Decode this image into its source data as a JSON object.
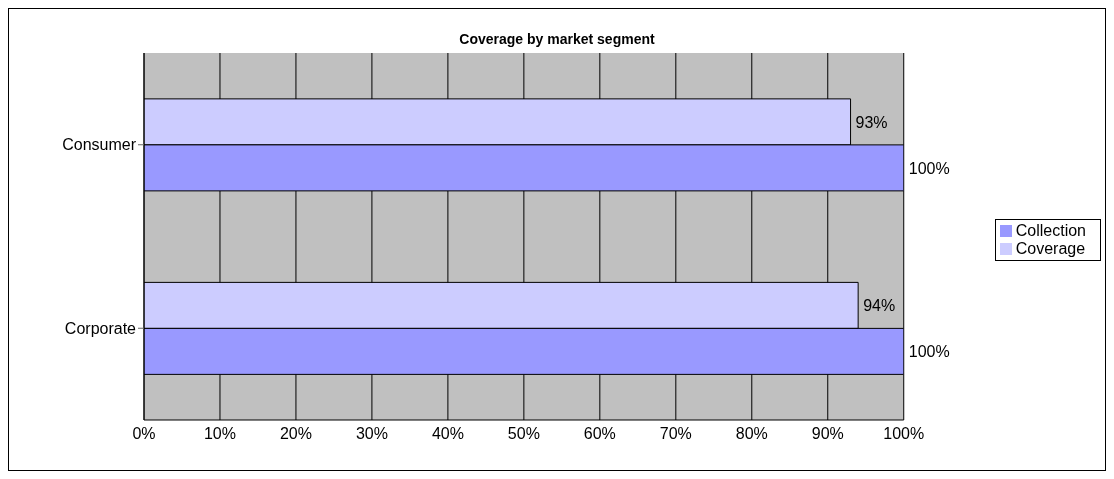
{
  "chart_data": {
    "type": "bar",
    "orientation": "horizontal",
    "title": "Coverage by market segment",
    "categories": [
      "Consumer",
      "Corporate"
    ],
    "series": [
      {
        "name": "Coverage",
        "color": "#ccccff",
        "values": [
          93,
          94
        ],
        "value_labels": [
          "93%",
          "94%"
        ]
      },
      {
        "name": "Collection",
        "color": "#9999ff",
        "values": [
          100,
          100
        ],
        "value_labels": [
          "100%",
          "100%"
        ]
      }
    ],
    "xlim": [
      0,
      100
    ],
    "xticks": [
      {
        "value": 0,
        "label": "0%"
      },
      {
        "value": 10,
        "label": "10%"
      },
      {
        "value": 20,
        "label": "20%"
      },
      {
        "value": 30,
        "label": "30%"
      },
      {
        "value": 40,
        "label": "40%"
      },
      {
        "value": 50,
        "label": "50%"
      },
      {
        "value": 60,
        "label": "60%"
      },
      {
        "value": 70,
        "label": "70%"
      },
      {
        "value": 80,
        "label": "80%"
      },
      {
        "value": 90,
        "label": "90%"
      },
      {
        "value": 100,
        "label": "100%"
      }
    ],
    "grid": "x",
    "legend": "right"
  }
}
